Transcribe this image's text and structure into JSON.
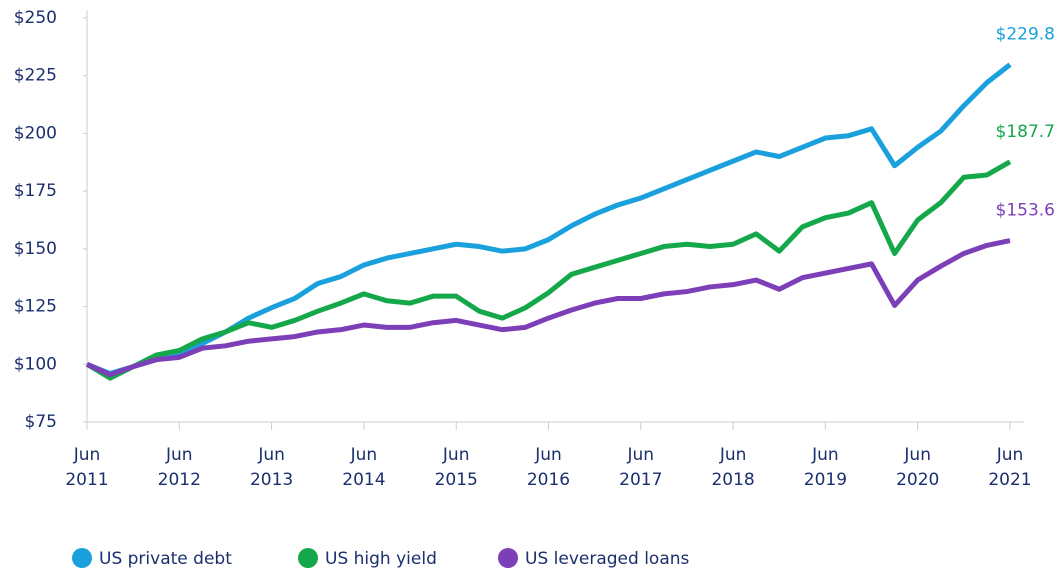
{
  "chart_data": {
    "type": "line",
    "categories": [
      "Jun 2011",
      null,
      null,
      null,
      "Jun 2012",
      null,
      null,
      null,
      "Jun 2013",
      null,
      null,
      null,
      "Jun 2014",
      null,
      null,
      null,
      "Jun 2015",
      null,
      null,
      null,
      "Jun 2016",
      null,
      null,
      null,
      "Jun 2017",
      null,
      null,
      null,
      "Jun 2018",
      null,
      null,
      null,
      "Jun 2019",
      null,
      null,
      null,
      "Jun 2020",
      null,
      null,
      null,
      "Jun 2021"
    ],
    "series": [
      {
        "name": "US private debt",
        "color": "#1aa0dc",
        "values": [
          100,
          96,
          99,
          102,
          104,
          109,
          114,
          120,
          124.5,
          128.5,
          135,
          138,
          143,
          146,
          148,
          150,
          152,
          151,
          149,
          150,
          154,
          160,
          165,
          169,
          172,
          176,
          180,
          184,
          188,
          192,
          190,
          194,
          198,
          199,
          202,
          186,
          194,
          201,
          212,
          222,
          229.8
        ],
        "value_labels": [
          null,
          null,
          null,
          null,
          null,
          null,
          null,
          null,
          null,
          null,
          null,
          null,
          null,
          null,
          null,
          null,
          null,
          null,
          null,
          null,
          null,
          null,
          null,
          null,
          null,
          null,
          null,
          null,
          null,
          null,
          null,
          null,
          null,
          null,
          null,
          null,
          null,
          null,
          null,
          null,
          "$229.8"
        ]
      },
      {
        "name": "US high yield",
        "color": "#14a84b",
        "values": [
          100,
          94,
          99,
          104,
          106,
          111,
          114,
          118,
          116,
          119,
          123,
          126.5,
          130.5,
          127.5,
          126.5,
          129.5,
          129.5,
          123,
          120,
          124.5,
          131,
          139,
          142,
          145,
          148,
          151,
          152,
          151,
          152,
          156.5,
          149,
          159.5,
          163.5,
          165.5,
          170,
          148,
          162.5,
          170,
          181,
          182,
          187.7
        ],
        "value_labels": [
          null,
          null,
          null,
          null,
          null,
          null,
          null,
          null,
          null,
          null,
          null,
          null,
          null,
          null,
          null,
          null,
          null,
          null,
          null,
          null,
          null,
          null,
          null,
          null,
          null,
          null,
          null,
          null,
          null,
          null,
          null,
          null,
          null,
          null,
          null,
          null,
          null,
          null,
          null,
          null,
          "$187.7"
        ]
      },
      {
        "name": "US leveraged loans",
        "color": "#7d3fb8",
        "values": [
          100,
          95.5,
          99,
          102,
          103,
          107,
          108,
          110,
          111,
          112,
          114,
          115,
          117,
          116,
          116,
          118,
          119,
          117,
          115,
          116,
          120,
          123.5,
          126.5,
          128.5,
          128.5,
          130.5,
          131.5,
          133.5,
          134.5,
          136.5,
          132.5,
          137.5,
          139.5,
          141.5,
          143.5,
          125.5,
          136.5,
          142.5,
          148,
          151.5,
          153.6
        ],
        "value_labels": [
          null,
          null,
          null,
          null,
          null,
          null,
          null,
          null,
          null,
          null,
          null,
          null,
          null,
          null,
          null,
          null,
          null,
          null,
          null,
          null,
          null,
          null,
          null,
          null,
          null,
          null,
          null,
          null,
          null,
          null,
          null,
          null,
          null,
          null,
          null,
          null,
          null,
          null,
          null,
          null,
          "$153.6"
        ]
      }
    ],
    "ylim": [
      75,
      250
    ],
    "yticks": [
      {
        "value": 75,
        "label": "$75"
      },
      {
        "value": 100,
        "label": "$100"
      },
      {
        "value": 125,
        "label": "$125"
      },
      {
        "value": 150,
        "label": "$150"
      },
      {
        "value": 175,
        "label": "$175"
      },
      {
        "value": 200,
        "label": "$200"
      },
      {
        "value": 225,
        "label": "$225"
      },
      {
        "value": 250,
        "label": "$250"
      }
    ],
    "grid": false,
    "legend": "bottom"
  }
}
